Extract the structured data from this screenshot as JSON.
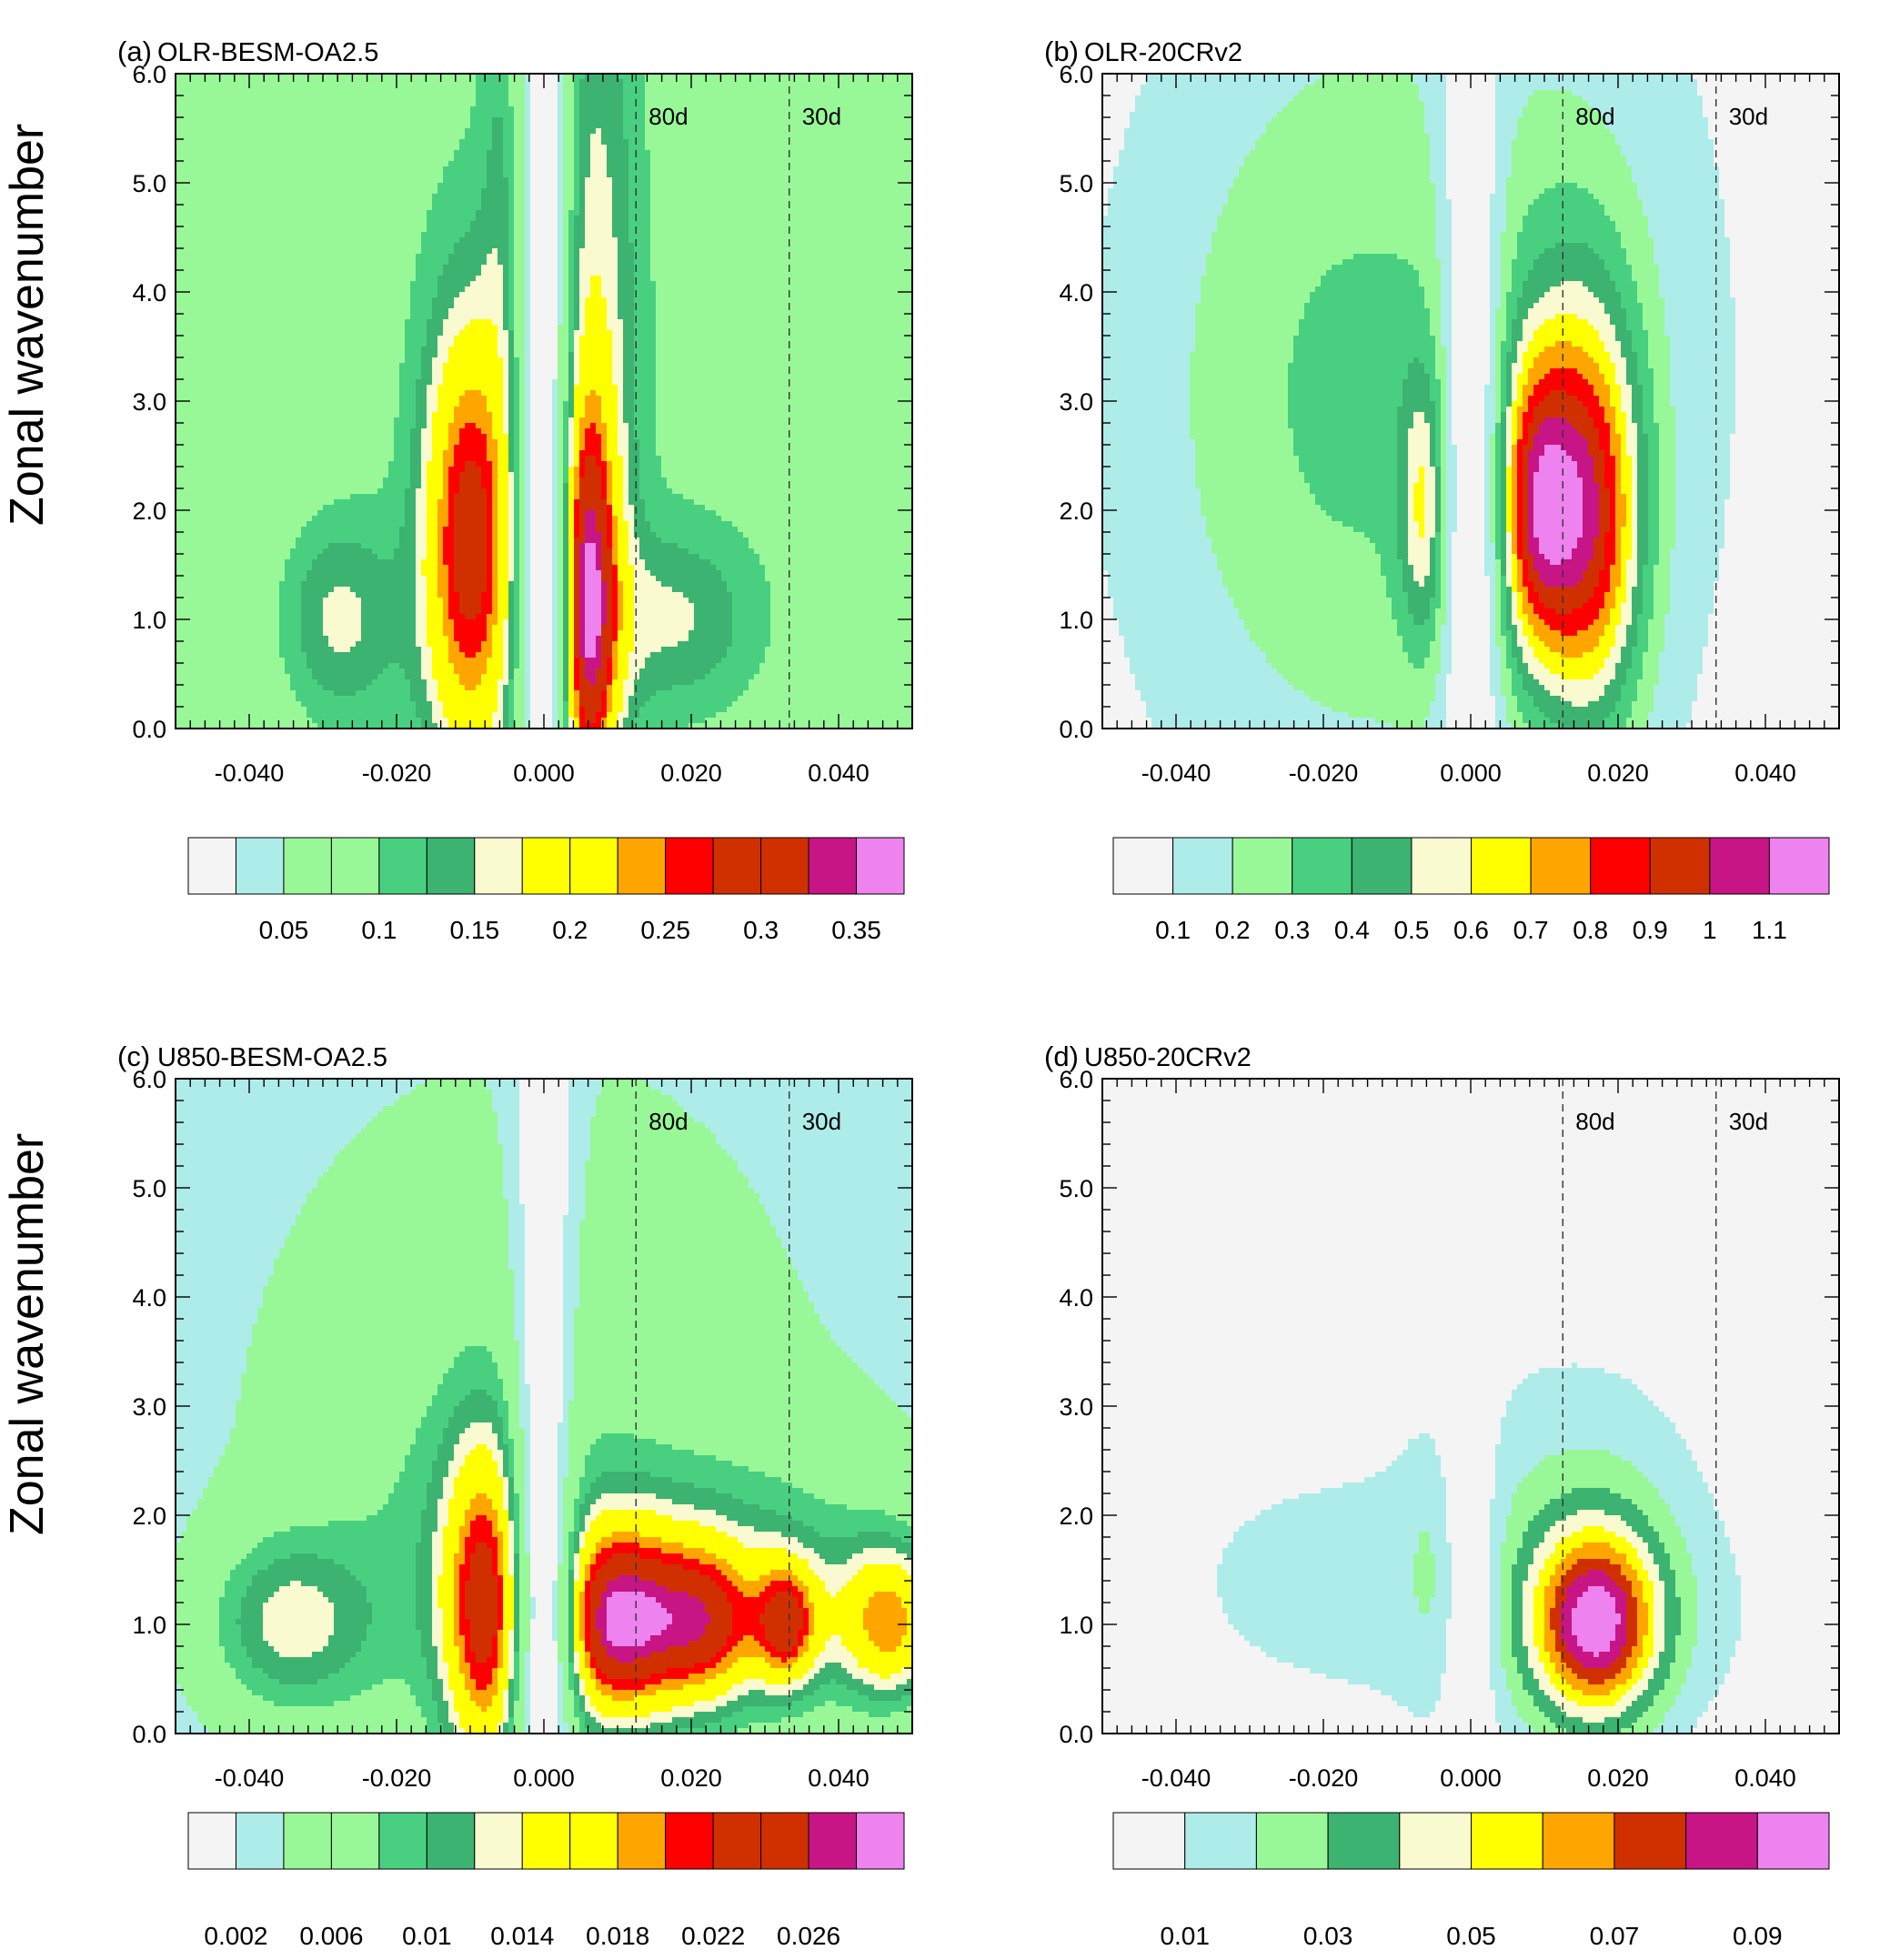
{
  "figure": {
    "ylabel": "Zonal wavenumber"
  },
  "chart_data": [
    {
      "id": "a",
      "type": "heatmap",
      "panel_letter": "(a)",
      "title": "OLR-BESM-OA2.5",
      "xlim": [
        -0.05,
        0.05
      ],
      "ylim": [
        0,
        6
      ],
      "xticks": [
        -0.04,
        -0.02,
        0.0,
        0.02,
        0.04
      ],
      "xtick_labels": [
        "-0.040",
        "-0.020",
        "0.000",
        "0.020",
        "0.040"
      ],
      "yticks": [
        0,
        1,
        2,
        3,
        4,
        5,
        6
      ],
      "ytick_labels": [
        "0.0",
        "1.0",
        "2.0",
        "3.0",
        "4.0",
        "5.0",
        "6.0"
      ],
      "period_lines": [
        {
          "x": 0.0125,
          "label": "80d"
        },
        {
          "x": 0.0333,
          "label": "30d"
        }
      ],
      "palette": [
        "#f4f4f4",
        "#aeecea",
        "#98f898",
        "#98f898",
        "#48d080",
        "#3cb371",
        "#fafad0",
        "#ffff00",
        "#ffff00",
        "#ffa500",
        "#ff0000",
        "#d03000",
        "#d03000",
        "#c71585",
        "#ee82ee"
      ],
      "colorbar_labels": [
        "0.05",
        "0.1",
        "0.15",
        "0.2",
        "0.25",
        "0.3",
        "0.35"
      ],
      "colorbar_label_positions": [
        2,
        4,
        6,
        8,
        10,
        12,
        14
      ],
      "peaks": [
        {
          "x": -0.01,
          "y": 1.7,
          "sx": 0.0045,
          "sy": 1.45,
          "a": 0.3
        },
        {
          "x": 0.0055,
          "y": 1.1,
          "sx": 0.003,
          "sy": 1.3,
          "a": 0.36
        },
        {
          "x": 0.0065,
          "y": 4.0,
          "sx": 0.0045,
          "sy": 2.8,
          "a": 0.11
        },
        {
          "x": -0.0055,
          "y": 5.0,
          "sx": 0.002,
          "sy": 1.5,
          "a": 0.06
        },
        {
          "x": -0.028,
          "y": 1.0,
          "sx": 0.006,
          "sy": 0.7,
          "a": 0.12
        },
        {
          "x": 0.018,
          "y": 1.0,
          "sx": 0.008,
          "sy": 0.6,
          "a": 0.1
        },
        {
          "x": -0.005,
          "y": 3.0,
          "sx": 0.02,
          "sy": 6.0,
          "a": 0.06
        },
        {
          "x": 0.035,
          "y": 2.0,
          "sx": 0.015,
          "sy": 3.0,
          "a": 0.03
        }
      ],
      "base": 0.08,
      "notch": {
        "x": 0.0,
        "w": 0.0026,
        "depth": 1.0
      }
    },
    {
      "id": "b",
      "type": "heatmap",
      "panel_letter": "(b)",
      "title": "OLR-20CRv2",
      "xlim": [
        -0.05,
        0.05
      ],
      "ylim": [
        0,
        6
      ],
      "xticks": [
        -0.04,
        -0.02,
        0.0,
        0.02,
        0.04
      ],
      "xtick_labels": [
        "-0.040",
        "-0.020",
        "0.000",
        "0.020",
        "0.040"
      ],
      "yticks": [
        0,
        1,
        2,
        3,
        4,
        5,
        6
      ],
      "ytick_labels": [
        "0.0",
        "1.0",
        "2.0",
        "3.0",
        "4.0",
        "5.0",
        "6.0"
      ],
      "period_lines": [
        {
          "x": 0.0125,
          "label": "80d"
        },
        {
          "x": 0.0333,
          "label": "30d"
        }
      ],
      "palette": [
        "#f4f4f4",
        "#aeecea",
        "#98f898",
        "#48d080",
        "#3cb371",
        "#fafad0",
        "#ffff00",
        "#ffa500",
        "#ff0000",
        "#d03000",
        "#c71585",
        "#ee82ee"
      ],
      "colorbar_labels": [
        "0.1",
        "0.2",
        "0.3",
        "0.4",
        "0.5",
        "0.6",
        "0.7",
        "0.8",
        "0.9",
        "1",
        "1.1"
      ],
      "colorbar_label_positions": [
        1,
        2,
        3,
        4,
        5,
        6,
        7,
        8,
        9,
        10,
        11
      ],
      "peaks": [
        {
          "x": 0.0085,
          "y": 2.0,
          "sx": 0.004,
          "sy": 1.0,
          "a": 1.0
        },
        {
          "x": 0.0165,
          "y": 1.8,
          "sx": 0.005,
          "sy": 1.3,
          "a": 1.05
        },
        {
          "x": 0.014,
          "y": 3.0,
          "sx": 0.007,
          "sy": 1.6,
          "a": 0.35
        },
        {
          "x": -0.006,
          "y": 2.0,
          "sx": 0.0025,
          "sy": 0.9,
          "a": 0.65
        },
        {
          "x": -0.018,
          "y": 3.0,
          "sx": 0.02,
          "sy": 2.5,
          "a": 0.35
        },
        {
          "x": 0.004,
          "y": 3.5,
          "sx": 0.03,
          "sy": 4.0,
          "a": 0.18
        }
      ],
      "base": 0.05,
      "notch": {
        "x": 0.0,
        "w": 0.003,
        "depth": 1.0
      }
    },
    {
      "id": "c",
      "type": "heatmap",
      "panel_letter": "(c)",
      "title": "U850-BESM-OA2.5",
      "xlim": [
        -0.05,
        0.05
      ],
      "ylim": [
        0,
        6
      ],
      "xticks": [
        -0.04,
        -0.02,
        0.0,
        0.02,
        0.04
      ],
      "xtick_labels": [
        "-0.040",
        "-0.020",
        "0.000",
        "0.020",
        "0.040"
      ],
      "yticks": [
        0,
        1,
        2,
        3,
        4,
        5,
        6
      ],
      "ytick_labels": [
        "0.0",
        "1.0",
        "2.0",
        "3.0",
        "4.0",
        "5.0",
        "6.0"
      ],
      "period_lines": [
        {
          "x": 0.0125,
          "label": "80d"
        },
        {
          "x": 0.0333,
          "label": "30d"
        }
      ],
      "palette": [
        "#f4f4f4",
        "#aeecea",
        "#98f898",
        "#98f898",
        "#48d080",
        "#3cb371",
        "#fafad0",
        "#ffff00",
        "#ffff00",
        "#ffa500",
        "#ff0000",
        "#d03000",
        "#d03000",
        "#c71585",
        "#ee82ee"
      ],
      "colorbar_labels": [
        "0.002",
        "0.006",
        "0.01",
        "0.014",
        "0.018",
        "0.022",
        "0.026"
      ],
      "colorbar_label_positions": [
        1,
        3,
        5,
        7,
        9,
        11,
        13
      ],
      "peaks": [
        {
          "x": -0.008,
          "y": 1.1,
          "sx": 0.004,
          "sy": 1.1,
          "a": 0.024
        },
        {
          "x": 0.01,
          "y": 1.0,
          "sx": 0.006,
          "sy": 0.6,
          "a": 0.029
        },
        {
          "x": 0.022,
          "y": 1.0,
          "sx": 0.005,
          "sy": 0.5,
          "a": 0.02
        },
        {
          "x": 0.033,
          "y": 1.0,
          "sx": 0.003,
          "sy": 0.4,
          "a": 0.022
        },
        {
          "x": 0.047,
          "y": 1.0,
          "sx": 0.005,
          "sy": 0.5,
          "a": 0.021
        },
        {
          "x": 0.025,
          "y": 1.3,
          "sx": 0.02,
          "sy": 0.9,
          "a": 0.012
        },
        {
          "x": -0.035,
          "y": 1.0,
          "sx": 0.008,
          "sy": 0.6,
          "a": 0.014
        },
        {
          "x": -0.01,
          "y": 1.6,
          "sx": 0.015,
          "sy": 1.6,
          "a": 0.006
        },
        {
          "x": 0.0,
          "y": 3.0,
          "sx": 0.04,
          "sy": 3.5,
          "a": 0.006
        }
      ],
      "base": 0.0025,
      "notch": {
        "x": 0.0,
        "w": 0.003,
        "depth": 1.0
      }
    },
    {
      "id": "d",
      "type": "heatmap",
      "panel_letter": "(d)",
      "title": "U850-20CRv2",
      "xlim": [
        -0.05,
        0.05
      ],
      "ylim": [
        0,
        6
      ],
      "xticks": [
        -0.04,
        -0.02,
        0.0,
        0.02,
        0.04
      ],
      "xtick_labels": [
        "-0.040",
        "-0.020",
        "0.000",
        "0.020",
        "0.040"
      ],
      "yticks": [
        0,
        1,
        2,
        3,
        4,
        5,
        6
      ],
      "ytick_labels": [
        "0.0",
        "1.0",
        "2.0",
        "3.0",
        "4.0",
        "5.0",
        "6.0"
      ],
      "period_lines": [
        {
          "x": 0.0125,
          "label": "80d"
        },
        {
          "x": 0.0333,
          "label": "30d"
        }
      ],
      "palette": [
        "#f4f4f4",
        "#aeecea",
        "#98f898",
        "#3cb371",
        "#fafad0",
        "#ffff00",
        "#ffa500",
        "#d03000",
        "#c71585",
        "#ee82ee"
      ],
      "colorbar_labels": [
        "0.01",
        "0.03",
        "0.05",
        "0.07",
        "0.09"
      ],
      "colorbar_label_positions": [
        1,
        3,
        5,
        7,
        9
      ],
      "peaks": [
        {
          "x": 0.017,
          "y": 1.0,
          "sx": 0.006,
          "sy": 0.6,
          "a": 0.1
        },
        {
          "x": 0.016,
          "y": 1.6,
          "sx": 0.012,
          "sy": 1.3,
          "a": 0.025
        },
        {
          "x": -0.02,
          "y": 1.4,
          "sx": 0.03,
          "sy": 1.6,
          "a": 0.015
        },
        {
          "x": -0.006,
          "y": 1.5,
          "sx": 0.002,
          "sy": 0.6,
          "a": 0.012
        },
        {
          "x": 0.028,
          "y": 1.0,
          "sx": 0.02,
          "sy": 0.7,
          "a": 0.006
        }
      ],
      "base": 0.0,
      "notch": {
        "x": 0.0,
        "w": 0.0025,
        "depth": 0.9
      }
    }
  ]
}
